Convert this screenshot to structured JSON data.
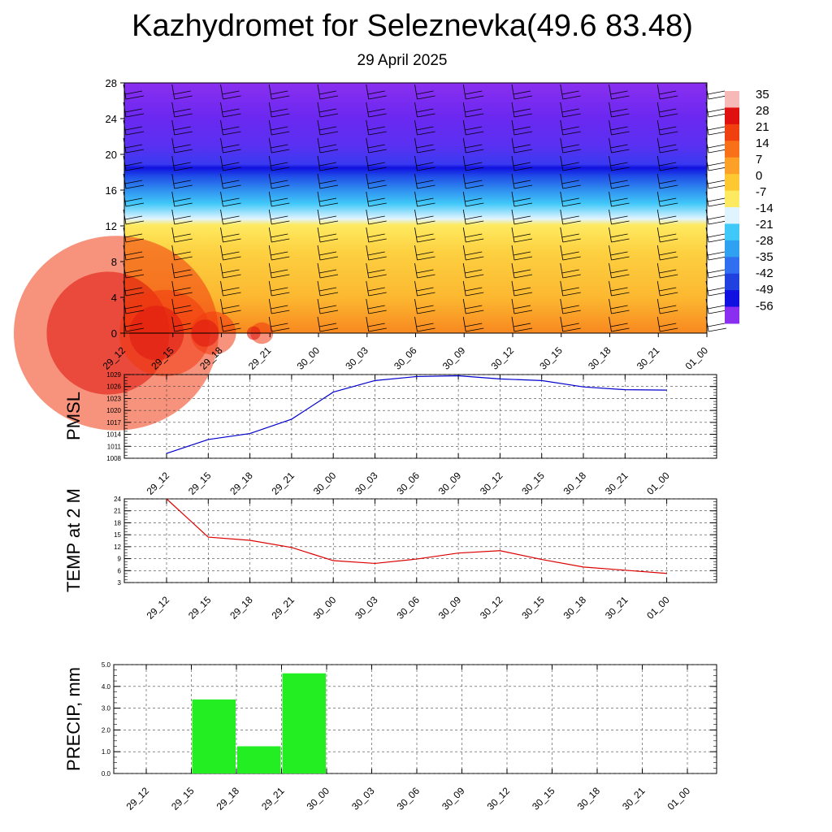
{
  "header": {
    "title": "Kazhydromet for Seleznevka(49.6 83.48)",
    "subtitle": "29 April 2025"
  },
  "time_labels": [
    "29_12",
    "29_15",
    "29_18",
    "29_21",
    "30_00",
    "30_03",
    "30_06",
    "30_09",
    "30_12",
    "30_15",
    "30_18",
    "30_21",
    "01_00"
  ],
  "chart_data": [
    {
      "type": "heatmap",
      "title": "",
      "xlabel": "",
      "ylabel": "",
      "x": [
        "29_12",
        "29_15",
        "29_18",
        "29_21",
        "30_00",
        "30_03",
        "30_06",
        "30_09",
        "30_12",
        "30_15",
        "30_18",
        "30_21",
        "01_00"
      ],
      "y_ticks": [
        0,
        4,
        8,
        12,
        16,
        20,
        24,
        28
      ],
      "ylim": [
        0,
        28
      ],
      "colorbar_labels": [
        "35",
        "28",
        "21",
        "14",
        "7",
        "0",
        "-7",
        "-14",
        "-21",
        "-28",
        "-35",
        "-42",
        "-49",
        "-56"
      ],
      "colorbar_colors": [
        "#f7b8b8",
        "#e01010",
        "#f04010",
        "#f87018",
        "#fca028",
        "#fdc830",
        "#feea60",
        "#e0f4ff",
        "#40c8f8",
        "#30a0f0",
        "#3070f0",
        "#2040e0",
        "#1010e0",
        "#8a2ff0"
      ],
      "surface_temperature": [
        24,
        19,
        17,
        16,
        14,
        13,
        13,
        13,
        14,
        13,
        12,
        11,
        11
      ],
      "freezing_level": [
        12.5,
        12.5,
        12.4,
        12.3,
        12.2,
        12.1,
        12.0,
        12.0,
        11.9,
        11.9,
        11.8,
        11.8,
        11.8
      ],
      "tropopause_level": 18.5,
      "wind_barbs": "shown"
    },
    {
      "type": "line",
      "ylabel": "PMSL",
      "x": [
        "29_12",
        "29_15",
        "29_18",
        "29_21",
        "30_00",
        "30_03",
        "30_06",
        "30_09",
        "30_12",
        "30_15",
        "30_18",
        "30_21",
        "01_00"
      ],
      "y_ticks": [
        "1008",
        "1011",
        "1014",
        "1017",
        "1020",
        "1023",
        "1026",
        "1029"
      ],
      "ylim": [
        1008,
        1029
      ],
      "series": [
        {
          "values": [
            1009.2,
            1012.7,
            1014.2,
            1017.8,
            1024.6,
            1027.5,
            1028.5,
            1028.7,
            1027.9,
            1027.5,
            1025.9,
            1025.2,
            1025.1
          ],
          "color": "#0000cc"
        }
      ],
      "grid": true
    },
    {
      "type": "line",
      "ylabel": "TEMP at 2 M",
      "x": [
        "29_12",
        "29_15",
        "29_18",
        "29_21",
        "30_00",
        "30_03",
        "30_06",
        "30_09",
        "30_12",
        "30_15",
        "30_18",
        "30_21",
        "01_00"
      ],
      "y_ticks": [
        "3",
        "6",
        "9",
        "12",
        "15",
        "18",
        "21",
        "24"
      ],
      "ylim": [
        3,
        24
      ],
      "series": [
        {
          "values": [
            24,
            14.4,
            13.6,
            11.8,
            8.5,
            7.8,
            8.9,
            10.4,
            11,
            8.8,
            6.9,
            6.1,
            5.3
          ],
          "color": "#dd0000"
        }
      ],
      "grid": true
    },
    {
      "type": "bar",
      "ylabel": "PRECIP, mm",
      "categories": [
        "29_12",
        "29_15",
        "29_18",
        "29_21",
        "30_00",
        "30_03",
        "30_06",
        "30_09",
        "30_12",
        "30_15",
        "30_18",
        "30_21",
        "01_00"
      ],
      "y_ticks": [
        "0.0",
        "1.0",
        "2.0",
        "3.0",
        "4.0",
        "5.0"
      ],
      "ylim": [
        0,
        5
      ],
      "values": [
        0,
        3.4,
        1.25,
        4.6,
        0,
        0,
        0,
        0,
        0,
        0,
        0,
        0,
        0
      ],
      "color": "#22ee22",
      "grid": true
    }
  ]
}
